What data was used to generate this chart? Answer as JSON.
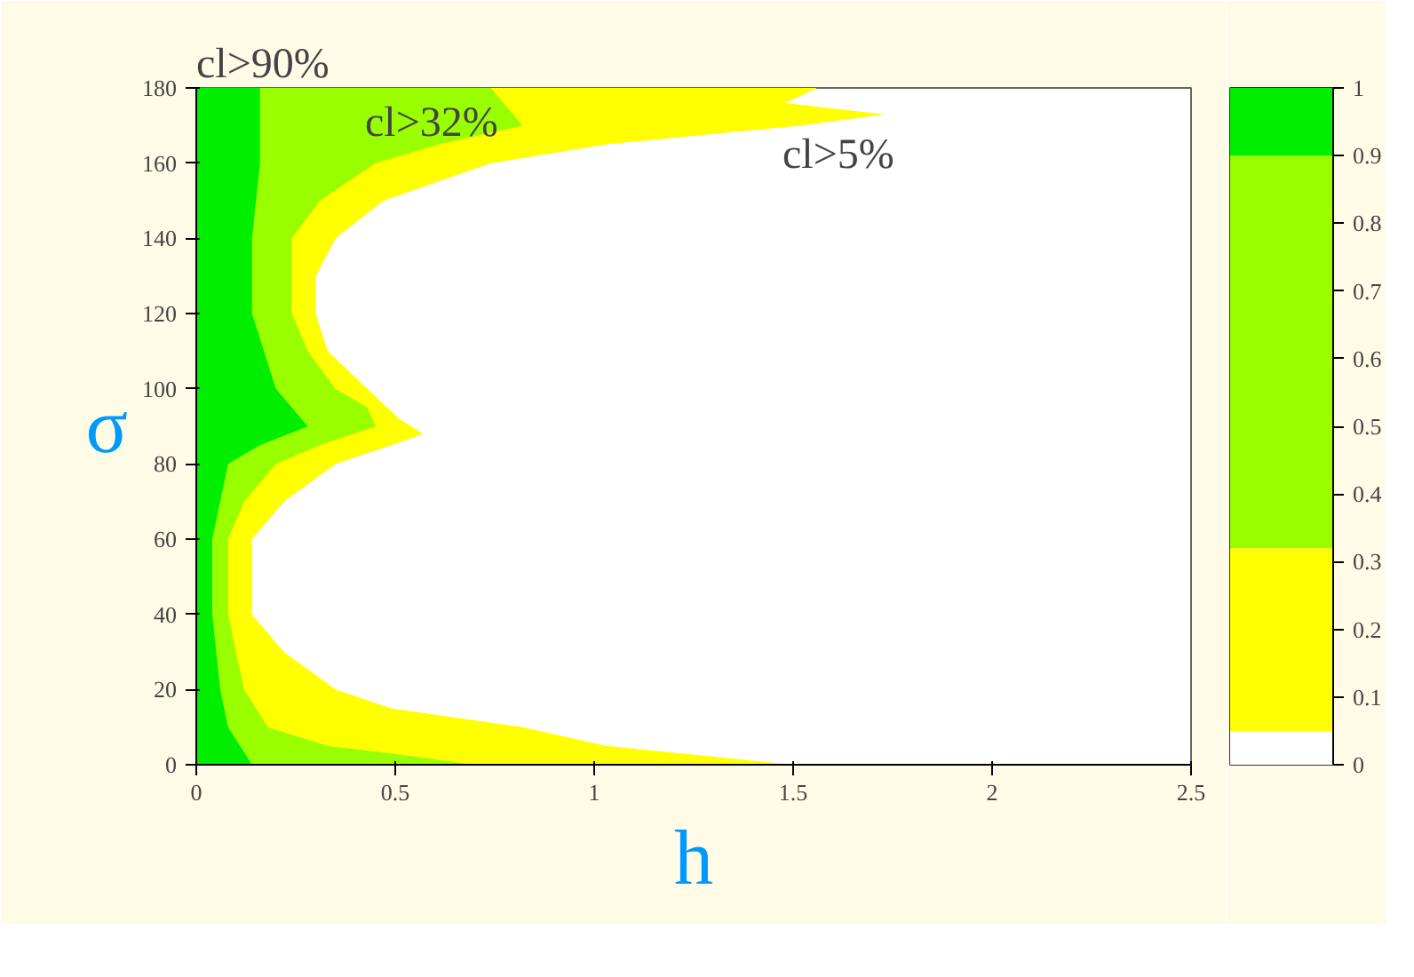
{
  "chart_data": [
    {
      "type": "area",
      "orientation": "horizontal",
      "xlabel": "h",
      "ylabel": "σ",
      "xlim": [
        0,
        2.5
      ],
      "xticks": [
        0,
        0.5,
        1,
        1.5,
        2,
        2.5
      ],
      "ylim": [
        0,
        180
      ],
      "yticks": [
        0,
        20,
        40,
        60,
        80,
        100,
        120,
        140,
        160,
        180
      ],
      "grid": false,
      "series": [
        {
          "color": "#ffff00",
          "x": [
            0,
            5,
            10,
            15,
            20,
            30,
            40,
            60,
            70,
            80,
            85,
            88,
            92,
            100,
            110,
            120,
            130,
            140,
            150,
            160,
            165,
            170,
            173,
            176,
            180
          ],
          "values": [
            1.5,
            1.03,
            0.82,
            0.49,
            0.35,
            0.22,
            0.14,
            0.14,
            0.22,
            0.35,
            0.49,
            0.57,
            0.51,
            0.43,
            0.33,
            0.3,
            0.3,
            0.35,
            0.47,
            0.74,
            1.03,
            1.52,
            1.73,
            1.48,
            1.56
          ]
        },
        {
          "color": "#99ff00",
          "x": [
            0,
            3,
            5,
            10,
            20,
            40,
            60,
            70,
            80,
            85,
            90,
            95,
            100,
            110,
            120,
            140,
            150,
            160,
            165,
            170,
            180
          ],
          "values": [
            0.7,
            0.49,
            0.33,
            0.18,
            0.12,
            0.08,
            0.08,
            0.12,
            0.2,
            0.31,
            0.45,
            0.43,
            0.35,
            0.28,
            0.24,
            0.24,
            0.31,
            0.45,
            0.61,
            0.82,
            0.74
          ]
        },
        {
          "color": "#00ee00",
          "x": [
            0,
            10,
            20,
            40,
            60,
            80,
            85,
            90,
            95,
            100,
            120,
            140,
            160,
            170,
            180
          ],
          "values": [
            0.14,
            0.08,
            0.06,
            0.04,
            0.04,
            0.08,
            0.16,
            0.28,
            0.24,
            0.2,
            0.14,
            0.14,
            0.16,
            0.16,
            0.16
          ]
        }
      ],
      "annotations": [
        "cl>90%",
        "cl>32%",
        "cl>5%"
      ]
    },
    {
      "type": "bar",
      "stacked": true,
      "categories": [
        null
      ],
      "ylim": [
        0,
        1
      ],
      "yticks": [
        0,
        0.1,
        0.2,
        0.3,
        0.4,
        0.5,
        0.6,
        0.7,
        0.8,
        0.9,
        1
      ],
      "series": [
        {
          "color": "#ffffff",
          "values": [
            0.05
          ]
        },
        {
          "color": "#ffff00",
          "values": [
            0.27
          ]
        },
        {
          "color": "#99ff00",
          "values": [
            0.58
          ]
        },
        {
          "color": "#00ee00",
          "values": [
            0.1
          ]
        }
      ]
    }
  ]
}
